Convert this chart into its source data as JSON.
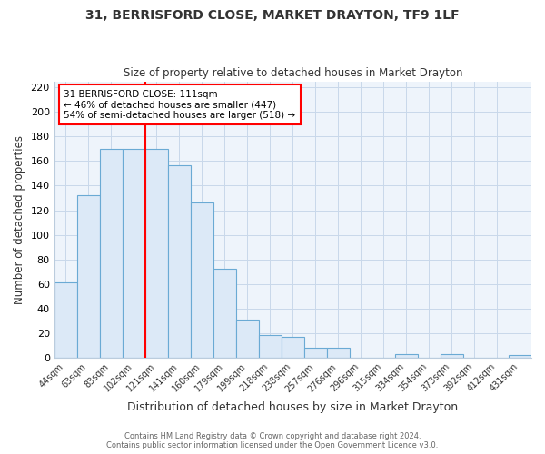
{
  "title": "31, BERRISFORD CLOSE, MARKET DRAYTON, TF9 1LF",
  "subtitle": "Size of property relative to detached houses in Market Drayton",
  "xlabel": "Distribution of detached houses by size in Market Drayton",
  "ylabel": "Number of detached properties",
  "bar_labels": [
    "44sqm",
    "63sqm",
    "83sqm",
    "102sqm",
    "121sqm",
    "141sqm",
    "160sqm",
    "179sqm",
    "199sqm",
    "218sqm",
    "238sqm",
    "257sqm",
    "276sqm",
    "296sqm",
    "315sqm",
    "334sqm",
    "354sqm",
    "373sqm",
    "392sqm",
    "412sqm",
    "431sqm"
  ],
  "bar_values": [
    61,
    132,
    170,
    170,
    170,
    157,
    126,
    72,
    31,
    18,
    17,
    8,
    8,
    0,
    0,
    3,
    0,
    3,
    0,
    0,
    2
  ],
  "bar_color": "#dce9f7",
  "bar_edge_color": "#6aaad4",
  "vline_color": "red",
  "annotation_title": "31 BERRISFORD CLOSE: 111sqm",
  "annotation_line1": "← 46% of detached houses are smaller (447)",
  "annotation_line2": "54% of semi-detached houses are larger (518) →",
  "annotation_box_edge": "red",
  "ylim": [
    0,
    225
  ],
  "yticks": [
    0,
    20,
    40,
    60,
    80,
    100,
    120,
    140,
    160,
    180,
    200,
    220
  ],
  "footer1": "Contains HM Land Registry data © Crown copyright and database right 2024.",
  "footer2": "Contains public sector information licensed under the Open Government Licence v3.0.",
  "background_color": "#ffffff",
  "grid_color": "#c8d8ea"
}
